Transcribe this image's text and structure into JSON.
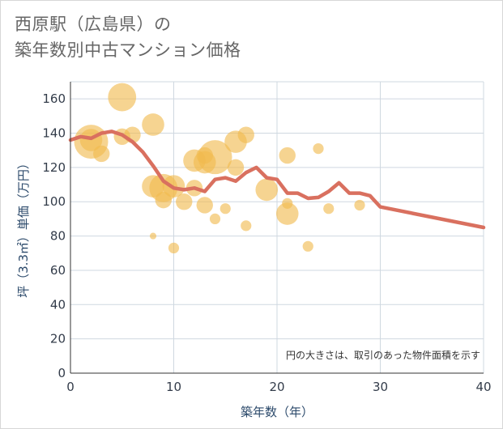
{
  "title": {
    "line1": "西原駅（広島県）の",
    "line2": "築年数別中古マンション価格"
  },
  "chart_data": {
    "type": "scatter",
    "xlabel": "築年数（年）",
    "ylabel": "坪（3.3㎡）単価（万円）",
    "xlim": [
      0,
      40
    ],
    "ylim": [
      0,
      170
    ],
    "xticks": [
      0,
      10,
      20,
      30,
      40
    ],
    "yticks": [
      0,
      20,
      40,
      60,
      80,
      100,
      120,
      140,
      160
    ],
    "grid": true,
    "note": "円の大きさは、取引のあった物件面積を示す",
    "colors": {
      "bubble": "#f0b94e",
      "line": "#d9705f",
      "grid": "#cfd8e0"
    },
    "bubbles": [
      {
        "x": 2,
        "y": 135,
        "size": 5
      },
      {
        "x": 2,
        "y": 136,
        "size": 3
      },
      {
        "x": 3,
        "y": 128,
        "size": 2
      },
      {
        "x": 5,
        "y": 161,
        "size": 4
      },
      {
        "x": 5,
        "y": 138,
        "size": 2
      },
      {
        "x": 6,
        "y": 139,
        "size": 2
      },
      {
        "x": 8,
        "y": 145,
        "size": 3
      },
      {
        "x": 8,
        "y": 109,
        "size": 3
      },
      {
        "x": 8,
        "y": 80,
        "size": 0.3
      },
      {
        "x": 9,
        "y": 108,
        "size": 4
      },
      {
        "x": 9,
        "y": 101,
        "size": 2
      },
      {
        "x": 10,
        "y": 109,
        "size": 3
      },
      {
        "x": 10,
        "y": 73,
        "size": 1
      },
      {
        "x": 11,
        "y": 100,
        "size": 2
      },
      {
        "x": 12,
        "y": 124,
        "size": 3
      },
      {
        "x": 12,
        "y": 108,
        "size": 2
      },
      {
        "x": 13,
        "y": 123,
        "size": 3
      },
      {
        "x": 13,
        "y": 127,
        "size": 2
      },
      {
        "x": 13,
        "y": 98,
        "size": 2
      },
      {
        "x": 14,
        "y": 126,
        "size": 5
      },
      {
        "x": 14,
        "y": 90,
        "size": 1
      },
      {
        "x": 15,
        "y": 96,
        "size": 1
      },
      {
        "x": 16,
        "y": 135,
        "size": 3
      },
      {
        "x": 16,
        "y": 120,
        "size": 2
      },
      {
        "x": 17,
        "y": 139,
        "size": 2
      },
      {
        "x": 17,
        "y": 86,
        "size": 1
      },
      {
        "x": 19,
        "y": 107,
        "size": 3
      },
      {
        "x": 21,
        "y": 127,
        "size": 2
      },
      {
        "x": 21,
        "y": 99,
        "size": 1
      },
      {
        "x": 21,
        "y": 93,
        "size": 3
      },
      {
        "x": 23,
        "y": 74,
        "size": 1
      },
      {
        "x": 24,
        "y": 131,
        "size": 1
      },
      {
        "x": 25,
        "y": 96,
        "size": 1
      },
      {
        "x": 28,
        "y": 98,
        "size": 1
      }
    ],
    "trend": {
      "x": [
        0,
        1,
        2,
        3,
        4,
        5,
        6,
        7,
        8,
        9,
        10,
        11,
        12,
        13,
        14,
        15,
        16,
        17,
        18,
        19,
        20,
        21,
        22,
        23,
        24,
        25,
        26,
        27,
        28,
        29,
        30,
        40
      ],
      "y": [
        136,
        138,
        137,
        140,
        141,
        139,
        135,
        129,
        121,
        112,
        108,
        107,
        108,
        106,
        113,
        114,
        112,
        117,
        120,
        114,
        113,
        105,
        105,
        102,
        102.5,
        106,
        111,
        105,
        105,
        103.5,
        97,
        85
      ]
    }
  }
}
